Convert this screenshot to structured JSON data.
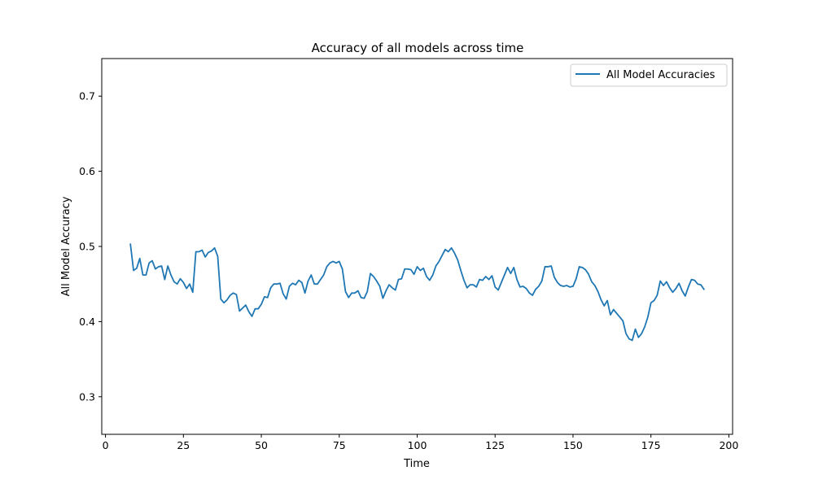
{
  "chart_data": {
    "type": "line",
    "title": "Accuracy of all models across time",
    "xlabel": "Time",
    "ylabel": "All Model Accuracy",
    "xlim": [
      -1.2,
      201.2
    ],
    "ylim": [
      0.25,
      0.75
    ],
    "xticks": [
      0,
      25,
      50,
      75,
      100,
      125,
      150,
      175,
      200
    ],
    "yticks": [
      0.3,
      0.4,
      0.5,
      0.6,
      0.7
    ],
    "ytick_labels": [
      "0.3",
      "0.4",
      "0.5",
      "0.6",
      "0.7"
    ],
    "grid": false,
    "legend_position": "top-right",
    "color": "#1f77b4",
    "series": [
      {
        "name": "All Model Accuracies",
        "x": [
          8,
          9,
          10,
          11,
          12,
          13,
          14,
          15,
          16,
          17,
          18,
          19,
          20,
          21,
          22,
          23,
          24,
          25,
          26,
          27,
          28,
          29,
          30,
          31,
          32,
          33,
          34,
          35,
          36,
          37,
          38,
          39,
          40,
          41,
          42,
          43,
          44,
          45,
          46,
          47,
          48,
          49,
          50,
          51,
          52,
          53,
          54,
          55,
          56,
          57,
          58,
          59,
          60,
          61,
          62,
          63,
          64,
          65,
          66,
          67,
          68,
          69,
          70,
          71,
          72,
          73,
          74,
          75,
          76,
          77,
          78,
          79,
          80,
          81,
          82,
          83,
          84,
          85,
          86,
          87,
          88,
          89,
          90,
          91,
          92,
          93,
          94,
          95,
          96,
          97,
          98,
          99,
          100,
          101,
          102,
          103,
          104,
          105,
          106,
          107,
          108,
          109,
          110,
          111,
          112,
          113,
          114,
          115,
          116,
          117,
          118,
          119,
          120,
          121,
          122,
          123,
          124,
          125,
          126,
          127,
          128,
          129,
          130,
          131,
          132,
          133,
          134,
          135,
          136,
          137,
          138,
          139,
          140,
          141,
          142,
          143,
          144,
          145,
          146,
          147,
          148,
          149,
          150,
          151,
          152,
          153,
          154,
          155,
          156,
          157,
          158,
          159,
          160,
          161,
          162,
          163,
          164,
          165,
          166,
          167,
          168,
          169,
          170,
          171,
          172,
          173,
          174,
          175,
          176,
          177,
          178,
          179,
          180,
          181,
          182,
          183,
          184,
          185,
          186,
          187,
          188,
          189,
          190,
          191,
          192
        ],
        "y": [
          0.503,
          0.468,
          0.471,
          0.484,
          0.462,
          0.462,
          0.478,
          0.481,
          0.47,
          0.473,
          0.474,
          0.456,
          0.474,
          0.462,
          0.453,
          0.45,
          0.457,
          0.452,
          0.444,
          0.45,
          0.439,
          0.493,
          0.493,
          0.495,
          0.486,
          0.492,
          0.494,
          0.498,
          0.487,
          0.43,
          0.425,
          0.429,
          0.435,
          0.438,
          0.436,
          0.414,
          0.418,
          0.422,
          0.413,
          0.407,
          0.417,
          0.417,
          0.423,
          0.433,
          0.432,
          0.445,
          0.45,
          0.45,
          0.451,
          0.437,
          0.43,
          0.447,
          0.451,
          0.449,
          0.455,
          0.452,
          0.438,
          0.454,
          0.462,
          0.45,
          0.45,
          0.456,
          0.462,
          0.473,
          0.478,
          0.48,
          0.478,
          0.48,
          0.47,
          0.44,
          0.432,
          0.438,
          0.438,
          0.441,
          0.432,
          0.431,
          0.44,
          0.464,
          0.46,
          0.454,
          0.447,
          0.431,
          0.441,
          0.449,
          0.445,
          0.442,
          0.456,
          0.457,
          0.47,
          0.47,
          0.469,
          0.463,
          0.473,
          0.468,
          0.471,
          0.46,
          0.455,
          0.462,
          0.474,
          0.48,
          0.488,
          0.496,
          0.493,
          0.498,
          0.491,
          0.482,
          0.468,
          0.455,
          0.445,
          0.449,
          0.449,
          0.446,
          0.456,
          0.455,
          0.46,
          0.456,
          0.461,
          0.446,
          0.442,
          0.452,
          0.462,
          0.472,
          0.464,
          0.472,
          0.456,
          0.446,
          0.447,
          0.444,
          0.438,
          0.435,
          0.443,
          0.447,
          0.454,
          0.473,
          0.473,
          0.474,
          0.459,
          0.452,
          0.448,
          0.447,
          0.448,
          0.446,
          0.447,
          0.457,
          0.473,
          0.472,
          0.469,
          0.463,
          0.453,
          0.448,
          0.44,
          0.429,
          0.421,
          0.428,
          0.409,
          0.416,
          0.411,
          0.406,
          0.401,
          0.384,
          0.377,
          0.375,
          0.39,
          0.379,
          0.384,
          0.393,
          0.406,
          0.425,
          0.428,
          0.435,
          0.454,
          0.448,
          0.453,
          0.445,
          0.439,
          0.444,
          0.451,
          0.441,
          0.434,
          0.446,
          0.456,
          0.455,
          0.45,
          0.449,
          0.443
        ]
      }
    ]
  }
}
